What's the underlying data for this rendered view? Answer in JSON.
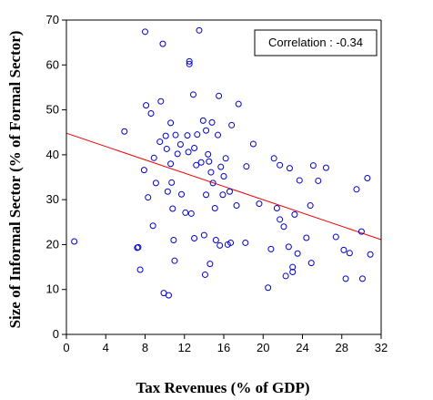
{
  "chart_data": {
    "type": "scatter",
    "title": "",
    "xlabel": "Tax Revenues (% of GDP)",
    "ylabel": "Size of Informal Sector (% of Formal Sector)",
    "xlim": [
      0,
      32
    ],
    "ylim": [
      0,
      70
    ],
    "xticks": [
      "0",
      "4",
      "8",
      "12",
      "16",
      "20",
      "24",
      "28",
      "32"
    ],
    "yticks": [
      "0",
      "10",
      "20",
      "30",
      "40",
      "50",
      "60",
      "70"
    ],
    "grid": false,
    "annotation": "Correlation : -0.34",
    "annotation_position": "top-right",
    "marker_color": "#0000cc",
    "fit_line_color": "#ee0000",
    "fit_line": {
      "x": [
        0,
        32
      ],
      "y": [
        44.8,
        21.1
      ]
    },
    "points": [
      {
        "x": 0.8,
        "y": 20.7
      },
      {
        "x": 5.9,
        "y": 45.2
      },
      {
        "x": 7.2,
        "y": 19.3
      },
      {
        "x": 7.3,
        "y": 19.4
      },
      {
        "x": 7.5,
        "y": 14.4
      },
      {
        "x": 7.9,
        "y": 36.6
      },
      {
        "x": 8.0,
        "y": 67.4
      },
      {
        "x": 8.1,
        "y": 51.0
      },
      {
        "x": 8.3,
        "y": 30.5
      },
      {
        "x": 8.6,
        "y": 49.2
      },
      {
        "x": 8.8,
        "y": 24.2
      },
      {
        "x": 8.9,
        "y": 39.3
      },
      {
        "x": 9.1,
        "y": 33.7
      },
      {
        "x": 9.5,
        "y": 42.9
      },
      {
        "x": 9.6,
        "y": 51.9
      },
      {
        "x": 9.8,
        "y": 64.7
      },
      {
        "x": 9.9,
        "y": 9.2
      },
      {
        "x": 10.1,
        "y": 44.2
      },
      {
        "x": 10.2,
        "y": 41.3
      },
      {
        "x": 10.3,
        "y": 31.8
      },
      {
        "x": 10.4,
        "y": 8.7
      },
      {
        "x": 10.6,
        "y": 47.1
      },
      {
        "x": 10.6,
        "y": 38.0
      },
      {
        "x": 10.7,
        "y": 33.8
      },
      {
        "x": 10.8,
        "y": 28.0
      },
      {
        "x": 10.9,
        "y": 21.0
      },
      {
        "x": 11.0,
        "y": 16.4
      },
      {
        "x": 11.1,
        "y": 44.4
      },
      {
        "x": 11.3,
        "y": 40.2
      },
      {
        "x": 11.6,
        "y": 42.3
      },
      {
        "x": 11.7,
        "y": 31.2
      },
      {
        "x": 12.1,
        "y": 27.1
      },
      {
        "x": 12.3,
        "y": 44.3
      },
      {
        "x": 12.4,
        "y": 40.6
      },
      {
        "x": 12.5,
        "y": 60.8
      },
      {
        "x": 12.5,
        "y": 60.2
      },
      {
        "x": 12.7,
        "y": 26.9
      },
      {
        "x": 12.9,
        "y": 53.4
      },
      {
        "x": 13.0,
        "y": 21.4
      },
      {
        "x": 13.0,
        "y": 41.5
      },
      {
        "x": 13.2,
        "y": 37.7
      },
      {
        "x": 13.3,
        "y": 44.5
      },
      {
        "x": 13.5,
        "y": 67.7
      },
      {
        "x": 13.7,
        "y": 38.3
      },
      {
        "x": 13.9,
        "y": 47.6
      },
      {
        "x": 14.0,
        "y": 22.1
      },
      {
        "x": 14.1,
        "y": 13.3
      },
      {
        "x": 14.2,
        "y": 31.1
      },
      {
        "x": 14.2,
        "y": 45.4
      },
      {
        "x": 14.4,
        "y": 40.1
      },
      {
        "x": 14.5,
        "y": 38.5
      },
      {
        "x": 14.6,
        "y": 15.7
      },
      {
        "x": 14.7,
        "y": 36.1
      },
      {
        "x": 14.8,
        "y": 47.2
      },
      {
        "x": 14.9,
        "y": 33.7
      },
      {
        "x": 15.1,
        "y": 28.1
      },
      {
        "x": 15.2,
        "y": 21.0
      },
      {
        "x": 15.4,
        "y": 44.4
      },
      {
        "x": 15.5,
        "y": 53.1
      },
      {
        "x": 15.6,
        "y": 19.8
      },
      {
        "x": 15.7,
        "y": 37.3
      },
      {
        "x": 15.9,
        "y": 31.1
      },
      {
        "x": 16.0,
        "y": 35.2
      },
      {
        "x": 16.2,
        "y": 39.2
      },
      {
        "x": 16.4,
        "y": 20.0
      },
      {
        "x": 16.6,
        "y": 31.8
      },
      {
        "x": 16.7,
        "y": 20.4
      },
      {
        "x": 16.8,
        "y": 46.6
      },
      {
        "x": 17.3,
        "y": 28.7
      },
      {
        "x": 17.5,
        "y": 51.3
      },
      {
        "x": 18.2,
        "y": 20.4
      },
      {
        "x": 18.3,
        "y": 37.4
      },
      {
        "x": 19.0,
        "y": 42.4
      },
      {
        "x": 19.6,
        "y": 29.1
      },
      {
        "x": 20.5,
        "y": 10.4
      },
      {
        "x": 20.8,
        "y": 19.0
      },
      {
        "x": 21.1,
        "y": 39.2
      },
      {
        "x": 21.4,
        "y": 28.1
      },
      {
        "x": 21.7,
        "y": 25.6
      },
      {
        "x": 21.7,
        "y": 37.7
      },
      {
        "x": 22.1,
        "y": 24.0
      },
      {
        "x": 22.3,
        "y": 13.0
      },
      {
        "x": 22.6,
        "y": 19.5
      },
      {
        "x": 22.7,
        "y": 37.0
      },
      {
        "x": 23.0,
        "y": 13.9
      },
      {
        "x": 23.0,
        "y": 15.0
      },
      {
        "x": 23.2,
        "y": 26.7
      },
      {
        "x": 23.5,
        "y": 18.0
      },
      {
        "x": 23.7,
        "y": 34.3
      },
      {
        "x": 24.4,
        "y": 21.5
      },
      {
        "x": 24.8,
        "y": 28.7
      },
      {
        "x": 24.9,
        "y": 15.9
      },
      {
        "x": 25.1,
        "y": 37.6
      },
      {
        "x": 25.6,
        "y": 34.2
      },
      {
        "x": 26.4,
        "y": 37.1
      },
      {
        "x": 27.4,
        "y": 21.7
      },
      {
        "x": 28.2,
        "y": 18.8
      },
      {
        "x": 28.4,
        "y": 12.4
      },
      {
        "x": 28.8,
        "y": 18.1
      },
      {
        "x": 29.5,
        "y": 32.3
      },
      {
        "x": 30.0,
        "y": 22.9
      },
      {
        "x": 30.1,
        "y": 12.4
      },
      {
        "x": 30.6,
        "y": 34.8
      },
      {
        "x": 30.9,
        "y": 17.8
      }
    ]
  }
}
